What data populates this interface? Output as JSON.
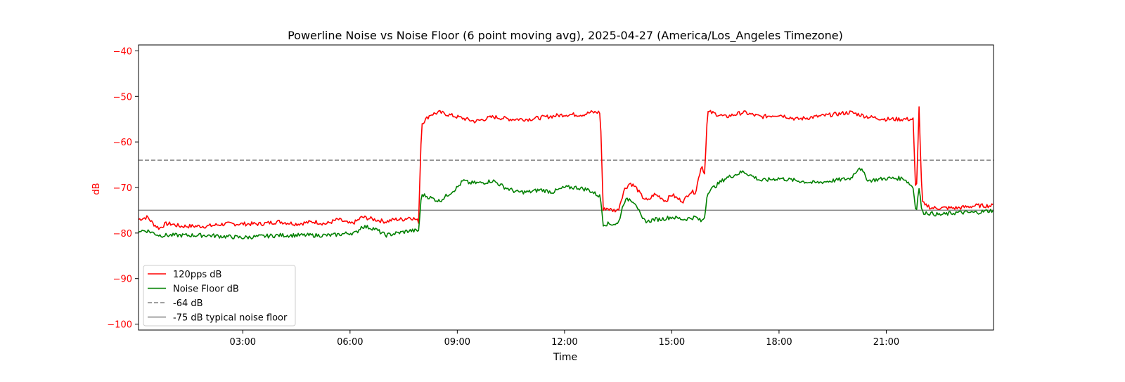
{
  "chart_data": {
    "type": "line",
    "title": "Powerline Noise vs Noise Floor (6 point moving avg), 2025-04-27 (America/Los_Angeles Timezone)",
    "xlabel": "Time",
    "ylabel": "dB",
    "xlim": [
      "00:05",
      "24:00"
    ],
    "ylim": [
      -101.3,
      -38.7
    ],
    "x_ticks": [
      "03:00",
      "06:00",
      "09:00",
      "12:00",
      "15:00",
      "18:00",
      "21:00"
    ],
    "y_ticks": [
      -40,
      -50,
      -60,
      -70,
      -80,
      -90,
      -100
    ],
    "grid": false,
    "legend_position": "lower-left",
    "colors": {
      "red": "#ff0000",
      "green": "#008000",
      "ref": "#808080",
      "axis_label": "#ff0000"
    },
    "series": [
      {
        "name": "120pps dB",
        "color": "#ff0000",
        "style": "solid",
        "x": [
          "00:05",
          "00:20",
          "00:30",
          "00:40",
          "00:50",
          "01:00",
          "01:15",
          "01:30",
          "02:00",
          "02:30",
          "03:00",
          "03:30",
          "04:00",
          "04:30",
          "05:00",
          "05:20",
          "05:40",
          "06:00",
          "06:10",
          "06:20",
          "06:40",
          "07:00",
          "07:15",
          "07:30",
          "07:40",
          "07:50",
          "07:55",
          "08:00",
          "08:15",
          "08:30",
          "09:00",
          "09:30",
          "10:00",
          "10:30",
          "11:00",
          "11:30",
          "12:00",
          "12:30",
          "12:45",
          "13:00",
          "13:05",
          "13:10",
          "13:20",
          "13:30",
          "13:40",
          "13:50",
          "14:00",
          "14:10",
          "14:20",
          "14:30",
          "14:40",
          "14:50",
          "15:00",
          "15:10",
          "15:20",
          "15:30",
          "15:40",
          "15:45",
          "15:50",
          "15:55",
          "16:00",
          "16:05",
          "16:30",
          "17:00",
          "17:30",
          "18:00",
          "18:30",
          "19:00",
          "19:30",
          "20:00",
          "20:30",
          "21:00",
          "21:30",
          "21:45",
          "21:50",
          "21:55",
          "22:00",
          "22:05",
          "22:10",
          "22:15",
          "22:30",
          "23:00",
          "23:30",
          "24:00"
        ],
        "values": [
          -77,
          -76.5,
          -78,
          -79,
          -78,
          -78,
          -78.5,
          -78.5,
          -78.5,
          -78,
          -78,
          -78,
          -77.5,
          -78,
          -77.5,
          -78,
          -77,
          -78,
          -77.5,
          -76.5,
          -77,
          -77.5,
          -77,
          -77,
          -76.5,
          -77,
          -77.5,
          -56,
          -54,
          -53.5,
          -54.5,
          -55.5,
          -54.5,
          -55,
          -55,
          -54.5,
          -54,
          -54,
          -53.5,
          -53.5,
          -75,
          -74.5,
          -75,
          -75,
          -70.5,
          -69,
          -70,
          -72,
          -73,
          -71.5,
          -72,
          -73,
          -71.5,
          -72.5,
          -73,
          -71,
          -71,
          -68,
          -65,
          -67,
          -53.5,
          -53.5,
          -54.5,
          -53.5,
          -54.5,
          -54,
          -55,
          -54.5,
          -54,
          -53.5,
          -54.5,
          -55,
          -55,
          -55,
          -73.5,
          -52.5,
          -73,
          -74,
          -74,
          -74.5,
          -74.5,
          -74.5,
          -74,
          -74
        ]
      },
      {
        "name": "Noise Floor dB",
        "color": "#008000",
        "style": "solid",
        "x": [
          "00:05",
          "00:20",
          "00:30",
          "00:40",
          "00:50",
          "01:00",
          "02:00",
          "03:00",
          "04:00",
          "05:00",
          "05:30",
          "06:00",
          "06:10",
          "06:20",
          "06:40",
          "07:00",
          "07:20",
          "07:40",
          "07:50",
          "07:55",
          "08:00",
          "08:10",
          "08:30",
          "08:45",
          "09:00",
          "09:10",
          "09:20",
          "09:40",
          "10:00",
          "10:20",
          "10:40",
          "11:00",
          "11:20",
          "11:40",
          "12:00",
          "12:20",
          "12:40",
          "13:00",
          "13:05",
          "13:15",
          "13:30",
          "13:40",
          "13:50",
          "14:00",
          "14:10",
          "14:20",
          "14:30",
          "14:40",
          "15:00",
          "15:20",
          "15:40",
          "15:50",
          "15:55",
          "16:00",
          "16:15",
          "16:30",
          "17:00",
          "17:15",
          "17:30",
          "18:00",
          "18:30",
          "19:00",
          "19:30",
          "20:00",
          "20:15",
          "20:30",
          "21:00",
          "21:30",
          "21:45",
          "21:50",
          "21:55",
          "22:00",
          "22:05",
          "22:30",
          "23:00",
          "23:30",
          "24:00"
        ],
        "values": [
          -79.5,
          -79.5,
          -80,
          -80.5,
          -80.5,
          -80.5,
          -80.5,
          -81,
          -80.5,
          -80.5,
          -80.5,
          -80,
          -80,
          -78.5,
          -79,
          -80.5,
          -80,
          -79.5,
          -79.5,
          -79.5,
          -71.5,
          -72,
          -73,
          -71.5,
          -70,
          -68.5,
          -69,
          -69,
          -68.5,
          -70,
          -71,
          -71,
          -70.5,
          -71,
          -70,
          -70,
          -70.5,
          -72,
          -78,
          -78,
          -78,
          -73,
          -72.5,
          -73.5,
          -77,
          -77.5,
          -77,
          -77,
          -76.5,
          -77,
          -76.5,
          -77.5,
          -76.5,
          -71,
          -69.5,
          -68,
          -66.5,
          -67.5,
          -68.5,
          -68,
          -68.5,
          -69,
          -68.5,
          -68,
          -65.5,
          -68.5,
          -68,
          -68,
          -70,
          -75.5,
          -70,
          -75.5,
          -75.5,
          -76,
          -75.5,
          -75.5,
          -75
        ]
      },
      {
        "name": "-64 dB",
        "color": "#808080",
        "style": "dashed",
        "x": [
          "00:05",
          "24:00"
        ],
        "values": [
          -64,
          -64
        ]
      },
      {
        "name": "-75 dB typical noise floor",
        "color": "#808080",
        "style": "solid",
        "x": [
          "00:05",
          "24:00"
        ],
        "values": [
          -75,
          -75
        ]
      }
    ]
  }
}
